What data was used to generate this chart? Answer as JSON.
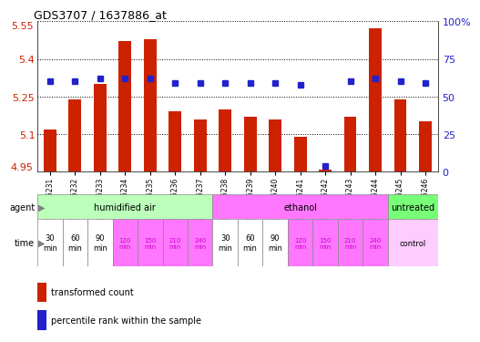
{
  "title": "GDS3707 / 1637886_at",
  "samples": [
    "GSM455231",
    "GSM455232",
    "GSM455233",
    "GSM455234",
    "GSM455235",
    "GSM455236",
    "GSM455237",
    "GSM455238",
    "GSM455239",
    "GSM455240",
    "GSM455241",
    "GSM455242",
    "GSM455243",
    "GSM455244",
    "GSM455245",
    "GSM455246"
  ],
  "transformed_count": [
    5.12,
    5.24,
    5.3,
    5.47,
    5.48,
    5.19,
    5.16,
    5.2,
    5.17,
    5.16,
    5.09,
    4.96,
    5.17,
    5.52,
    5.24,
    5.15
  ],
  "percentile_rank": [
    60,
    60,
    62,
    62,
    62,
    59,
    59,
    59,
    59,
    59,
    58,
    4,
    60,
    62,
    60,
    59
  ],
  "ymin": 4.95,
  "ymax": 5.55,
  "yticks_left": [
    5.1,
    5.25,
    5.4
  ],
  "ytick_labels_left": [
    "5.1",
    "5.25",
    "5.4"
  ],
  "ymin_label": "4.95",
  "ymax_label": "5.55",
  "right_yticks": [
    0,
    25,
    50,
    75,
    100
  ],
  "right_ytick_labels": [
    "0",
    "25",
    "50",
    "75",
    "100%"
  ],
  "bar_color": "#cc2200",
  "dot_color": "#2222cc",
  "bg_color": "#ffffff",
  "label_color_left": "#cc2200",
  "label_color_right": "#2222cc",
  "agent_groups": [
    {
      "label": "humidified air",
      "start": 0,
      "end": 7,
      "color": "#bbffbb"
    },
    {
      "label": "ethanol",
      "start": 7,
      "end": 14,
      "color": "#ff77ff"
    },
    {
      "label": "untreated",
      "start": 14,
      "end": 16,
      "color": "#77ff77"
    }
  ],
  "time_labels_14": [
    "30\nmin",
    "60\nmin",
    "90\nmin",
    "120\nmin",
    "150\nmin",
    "210\nmin",
    "240\nmin",
    "30\nmin",
    "60\nmin",
    "90\nmin",
    "120\nmin",
    "150\nmin",
    "210\nmin",
    "240\nmin"
  ],
  "time_colors_14": [
    "#ffffff",
    "#ffffff",
    "#ffffff",
    "#ff77ff",
    "#ff77ff",
    "#ff77ff",
    "#ff77ff",
    "#ffffff",
    "#ffffff",
    "#ffffff",
    "#ff77ff",
    "#ff77ff",
    "#ff77ff",
    "#ff77ff"
  ],
  "control_color": "#ffccff",
  "xticklabel_bg": "#cccccc"
}
